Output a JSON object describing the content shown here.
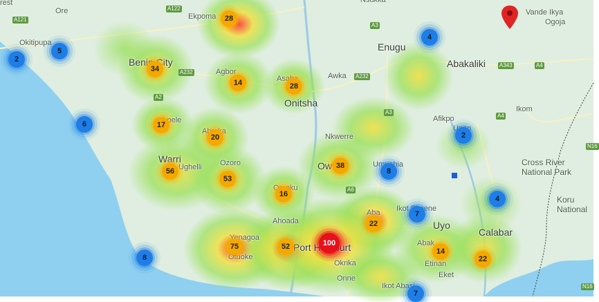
{
  "map": {
    "colors": {
      "sea": "#8fd0f0",
      "land": "#dfeee0",
      "heat_low": "#9be05a",
      "heat_mid": "#f2e03a",
      "heat_high": "#ff2a2a",
      "blue_cluster": "#1e7ee6",
      "orange_cluster": "#f5a800",
      "red_cluster": "#e8101b",
      "pin": "#e02424",
      "square_marker": "#1a5fd6"
    },
    "places": [
      {
        "id": "place-ore",
        "text": "Ore",
        "cls": "town"
      },
      {
        "id": "place-orest",
        "text": "rest",
        "cls": "town"
      },
      {
        "id": "place-okitipupa",
        "text": "Okitipupa",
        "cls": "town"
      },
      {
        "id": "place-ekpoma",
        "text": "Ekpoma",
        "cls": "town"
      },
      {
        "id": "place-benin-city",
        "text": "Benin City",
        "cls": "city"
      },
      {
        "id": "place-agbor",
        "text": "Agbor",
        "cls": "town"
      },
      {
        "id": "place-asaba",
        "text": "Asaba",
        "cls": "town"
      },
      {
        "id": "place-onitsha",
        "text": "Onitsha",
        "cls": "city"
      },
      {
        "id": "place-awka",
        "text": "Awka",
        "cls": "town"
      },
      {
        "id": "place-enugu",
        "text": "Enugu",
        "cls": "city"
      },
      {
        "id": "place-nsukka",
        "text": "Nsukka",
        "cls": "town"
      },
      {
        "id": "place-abakaliki",
        "text": "Abakaliki",
        "cls": "city"
      },
      {
        "id": "place-vande-ikya",
        "text": "Vande Ikya",
        "cls": "town"
      },
      {
        "id": "place-ogoja",
        "text": "Ogoja",
        "cls": "town"
      },
      {
        "id": "place-afikpo",
        "text": "Afikpo",
        "cls": "town"
      },
      {
        "id": "place-ugep",
        "text": "Ugep",
        "cls": "town"
      },
      {
        "id": "place-ikom",
        "text": "Ikom",
        "cls": "town"
      },
      {
        "id": "place-nkwerre",
        "text": "Nkwerre",
        "cls": "town"
      },
      {
        "id": "place-sapele",
        "text": "Sapele",
        "cls": "town"
      },
      {
        "id": "place-abraka",
        "text": "Abraka",
        "cls": "town"
      },
      {
        "id": "place-warri",
        "text": "Warri",
        "cls": "city"
      },
      {
        "id": "place-ughelli",
        "text": "Ughelli",
        "cls": "town"
      },
      {
        "id": "place-ozoro",
        "text": "Ozoro",
        "cls": "town"
      },
      {
        "id": "place-owerri",
        "text": "Owerri",
        "cls": "city"
      },
      {
        "id": "place-umuahia",
        "text": "Umuahia",
        "cls": "town"
      },
      {
        "id": "place-omoku",
        "text": "Omoku",
        "cls": "town"
      },
      {
        "id": "place-ahoada",
        "text": "Ahoada",
        "cls": "town"
      },
      {
        "id": "place-aba",
        "text": "Aba",
        "cls": "town"
      },
      {
        "id": "place-ikot-ekpene",
        "text": "Ikot Ekpene",
        "cls": "town"
      },
      {
        "id": "place-uyo",
        "text": "Uyo",
        "cls": "city"
      },
      {
        "id": "place-abak",
        "text": "Abak",
        "cls": "town"
      },
      {
        "id": "place-etinan",
        "text": "Etinan",
        "cls": "town"
      },
      {
        "id": "place-eket",
        "text": "Eket",
        "cls": "town"
      },
      {
        "id": "place-calabar",
        "text": "Calabar",
        "cls": "city"
      },
      {
        "id": "place-yenagoa",
        "text": "Yenagoa",
        "cls": "town"
      },
      {
        "id": "place-otuoke",
        "text": "Otuoke",
        "cls": "town"
      },
      {
        "id": "place-port-harcourt",
        "text": "Port Harcourt",
        "cls": "city"
      },
      {
        "id": "place-okrika",
        "text": "Okrika",
        "cls": "town"
      },
      {
        "id": "place-onne",
        "text": "Onne",
        "cls": "town"
      },
      {
        "id": "place-ikot-abasi",
        "text": "Ikot Abasi",
        "cls": "town"
      },
      {
        "id": "place-cross-river-np",
        "text": "Cross River\nNational Park",
        "cls": "park"
      },
      {
        "id": "place-korup-np",
        "text": "Koru\nNational",
        "cls": "park"
      }
    ],
    "road_shields": [
      {
        "id": "road-a121",
        "text": "A121"
      },
      {
        "id": "road-a122",
        "text": "A122"
      },
      {
        "id": "road-a232",
        "text": "A232"
      },
      {
        "id": "road-a2-a",
        "text": "A2"
      },
      {
        "id": "road-a3",
        "text": "A3"
      },
      {
        "id": "road-a232-b",
        "text": "A232"
      },
      {
        "id": "road-a343",
        "text": "A343"
      },
      {
        "id": "road-a4-a",
        "text": "A4"
      },
      {
        "id": "road-a4-b",
        "text": "A4"
      },
      {
        "id": "road-a3-b",
        "text": "A3"
      },
      {
        "id": "road-a6",
        "text": "A6"
      },
      {
        "id": "road-n16",
        "text": "N16"
      },
      {
        "id": "road-n16-b",
        "text": "N16"
      }
    ],
    "clusters": [
      {
        "id": "c1",
        "count": "28",
        "type": "orange"
      },
      {
        "id": "c2",
        "count": "4",
        "type": "blue"
      },
      {
        "id": "c3",
        "count": "2",
        "type": "blue"
      },
      {
        "id": "c4",
        "count": "5",
        "type": "blue"
      },
      {
        "id": "c5",
        "count": "34",
        "type": "orange"
      },
      {
        "id": "c6",
        "count": "14",
        "type": "orange"
      },
      {
        "id": "c7",
        "count": "28",
        "type": "orange"
      },
      {
        "id": "c8",
        "count": "6",
        "type": "blue"
      },
      {
        "id": "c9",
        "count": "17",
        "type": "orange"
      },
      {
        "id": "c10",
        "count": "20",
        "type": "orange"
      },
      {
        "id": "c11",
        "count": "2",
        "type": "blue"
      },
      {
        "id": "c12",
        "count": "56",
        "type": "orange"
      },
      {
        "id": "c13",
        "count": "53",
        "type": "orange"
      },
      {
        "id": "c14",
        "count": "38",
        "type": "orange"
      },
      {
        "id": "c15",
        "count": "8",
        "type": "blue"
      },
      {
        "id": "c16",
        "count": "16",
        "type": "orange"
      },
      {
        "id": "c17",
        "count": "4",
        "type": "blue"
      },
      {
        "id": "c18",
        "count": "7",
        "type": "blue"
      },
      {
        "id": "c19",
        "count": "22",
        "type": "orange"
      },
      {
        "id": "c20",
        "count": "75",
        "type": "orange"
      },
      {
        "id": "c21",
        "count": "52",
        "type": "orange"
      },
      {
        "id": "c22",
        "count": "100",
        "type": "red"
      },
      {
        "id": "c23",
        "count": "14",
        "type": "orange"
      },
      {
        "id": "c24",
        "count": "22",
        "type": "orange"
      },
      {
        "id": "c25",
        "count": "8",
        "type": "blue"
      },
      {
        "id": "c26",
        "count": "7",
        "type": "blue"
      }
    ]
  }
}
